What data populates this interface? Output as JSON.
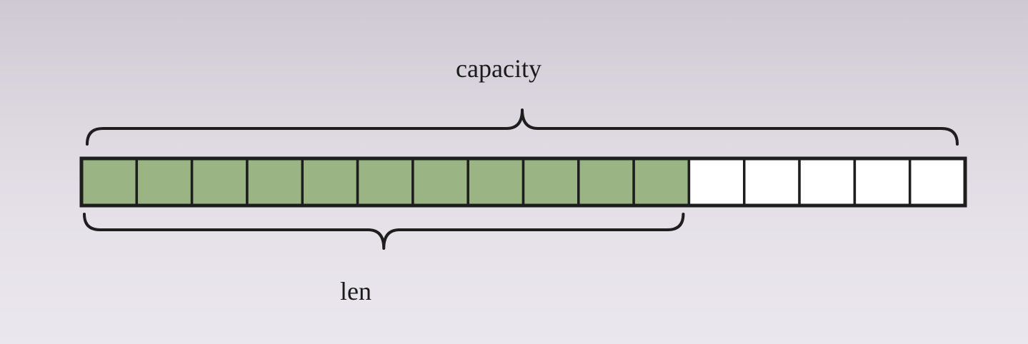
{
  "labels": {
    "capacity": "capacity",
    "len": "len"
  },
  "buffer": {
    "capacity": 16,
    "len": 11
  },
  "colors": {
    "filled": "#9ab583",
    "empty": "#ffffff",
    "stroke": "#1e1e1e"
  }
}
